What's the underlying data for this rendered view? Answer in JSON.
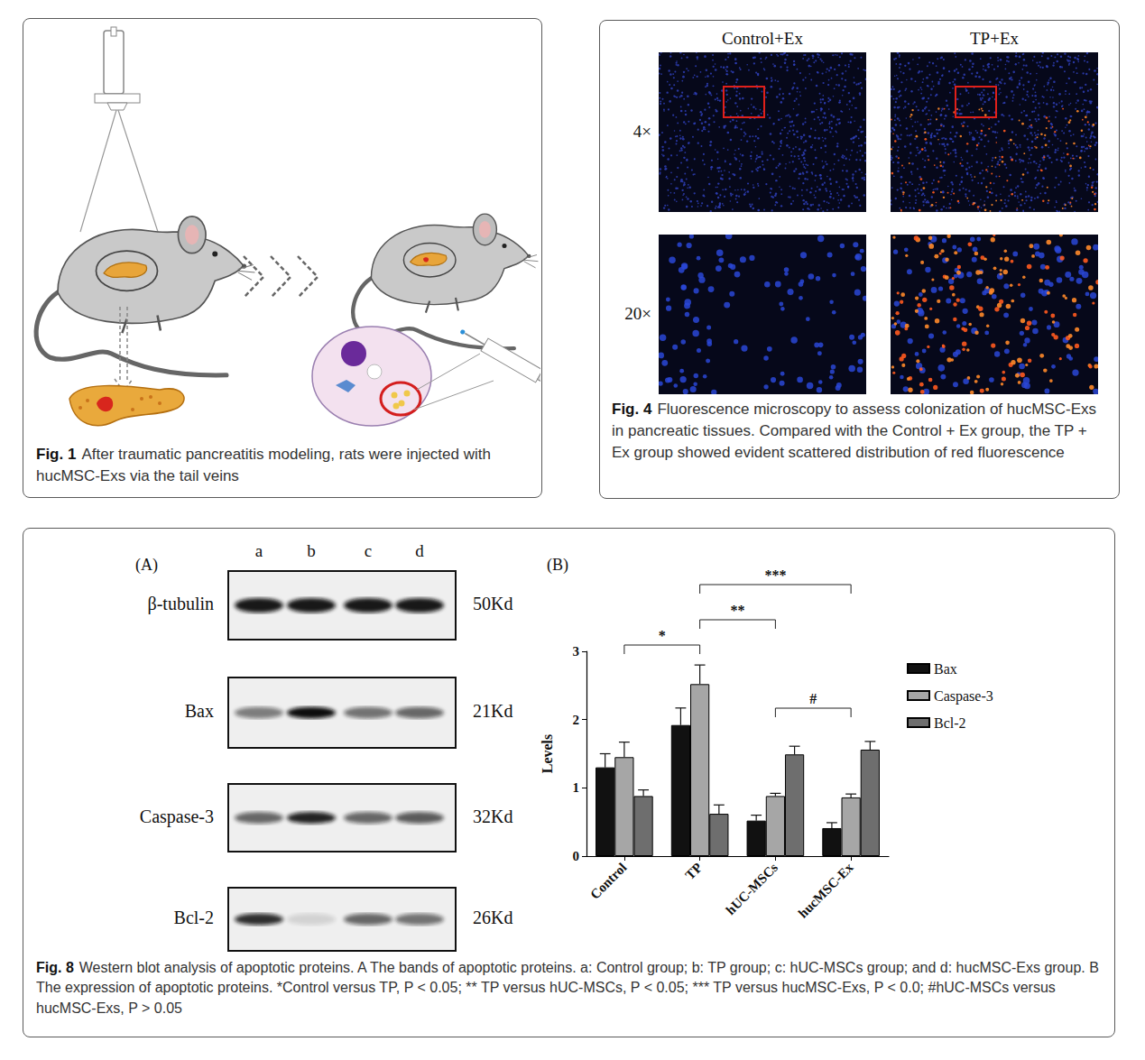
{
  "figures": [
    {
      "label": "Fig. 1",
      "caption": "After traumatic pancreatitis modeling, rats were injected with hucMSC-Exs via the tail veins"
    },
    {
      "label": "Fig. 4",
      "caption": "Fluorescence microscopy to assess colonization of hucMSC-Exs in pancreatic tissues. Compared with the Control + Ex group, the TP + Ex group showed evident scattered distribution of red fluorescence",
      "columns": [
        "Control+Ex",
        "TP+Ex"
      ],
      "rows": [
        "4×",
        "20×"
      ]
    },
    {
      "label": "Fig. 8",
      "caption": "Western blot analysis of apoptotic proteins. A The bands of apoptotic proteins. a: Control group; b: TP group; c: hUC-MSCs group; and d: hucMSC-Exs group. B The expression of apoptotic proteins. *Control versus TP, P < 0.05; ** TP versus hUC-MSCs, P < 0.05; *** TP versus hucMSC-Exs, P < 0.0; #hUC-MSCs versus hucMSC-Exs, P > 0.05",
      "panel_a": {
        "label": "(A)",
        "lanes": [
          "a",
          "b",
          "c",
          "d"
        ],
        "blots": [
          {
            "protein": "β-tubulin",
            "size": "50Kd"
          },
          {
            "protein": "Bax",
            "size": "21Kd"
          },
          {
            "protein": "Caspase-3",
            "size": "32Kd"
          },
          {
            "protein": "Bcl-2",
            "size": "26Kd"
          }
        ]
      }
    }
  ],
  "chart_data": {
    "type": "bar",
    "panel_label": "(B)",
    "y_label": "Levels",
    "categories": [
      "Control",
      "TP",
      "hUC-MSCs",
      "hucMSC-Ex"
    ],
    "series": [
      {
        "name": "Bax",
        "color": "#111111",
        "values": [
          1.3,
          1.92,
          0.52,
          0.41
        ],
        "errors": [
          0.2,
          0.25,
          0.08,
          0.08
        ]
      },
      {
        "name": "Caspase-3",
        "color": "#a6a6a6",
        "values": [
          1.45,
          2.52,
          0.88,
          0.86
        ],
        "errors": [
          0.22,
          0.28,
          0.04,
          0.05
        ]
      },
      {
        "name": "Bcl-2",
        "color": "#6e6e6e",
        "values": [
          0.88,
          0.62,
          1.49,
          1.56
        ],
        "errors": [
          0.09,
          0.13,
          0.12,
          0.12
        ]
      }
    ],
    "ylim": [
      0,
      3
    ],
    "yticks": [
      0,
      1,
      2,
      3
    ],
    "grid": false,
    "legend": "right",
    "comparisons": [
      {
        "from": "Control",
        "to": "TP",
        "label": "*"
      },
      {
        "from": "TP",
        "to": "hUC-MSCs",
        "label": "**"
      },
      {
        "from": "TP",
        "to": "hucMSC-Ex",
        "label": "***"
      },
      {
        "from": "hUC-MSCs",
        "to": "hucMSC-Ex",
        "label": "#"
      }
    ]
  }
}
